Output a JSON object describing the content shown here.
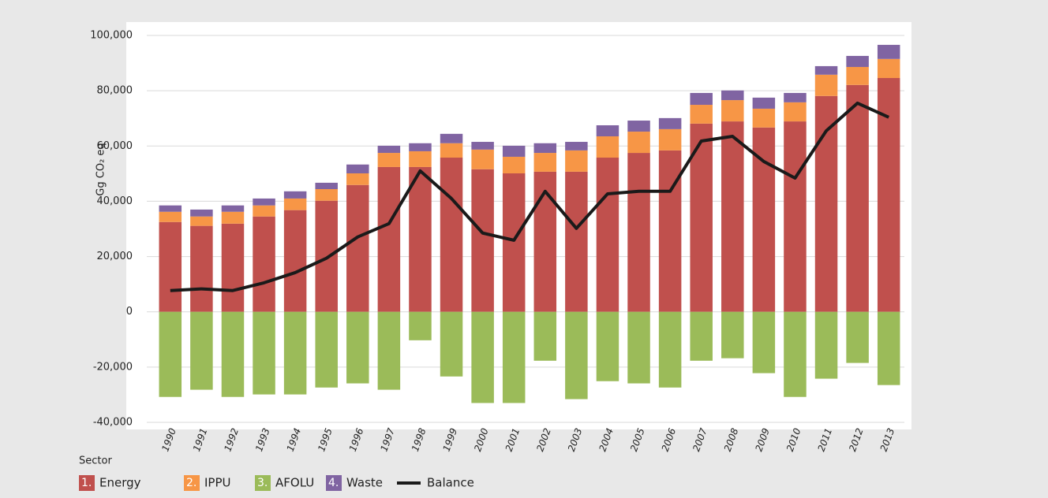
{
  "chart_data": {
    "type": "bar",
    "stacked": true,
    "y_label": "Gg CO₂ eq",
    "legend_title": "Sector",
    "categories": [
      "1990",
      "1991",
      "1992",
      "1993",
      "1994",
      "1995",
      "1996",
      "1997",
      "1998",
      "1999",
      "2000",
      "2001",
      "2002",
      "2003",
      "2004",
      "2005",
      "2006",
      "2007",
      "2008",
      "2009",
      "2010",
      "2011",
      "2012",
      "2013"
    ],
    "series": [
      {
        "code": "1.",
        "name": "Energy",
        "color": "#c0504d",
        "values": [
          32500,
          31100,
          31900,
          34500,
          36800,
          40200,
          45900,
          52400,
          52400,
          55800,
          51600,
          50100,
          50700,
          50700,
          55800,
          57500,
          58400,
          68100,
          68900,
          66700,
          68900,
          78100,
          82100,
          84600
        ]
      },
      {
        "code": "2.",
        "name": "IPPU",
        "color": "#f79646",
        "values": [
          3700,
          3400,
          4300,
          4000,
          4200,
          4200,
          4200,
          5100,
          5700,
          5200,
          7100,
          6000,
          6800,
          7700,
          7700,
          7700,
          7700,
          6800,
          7700,
          6800,
          6900,
          7700,
          6500,
          6900
        ]
      },
      {
        "code": "3.",
        "name": "AFOLU",
        "color": "#9bbb59",
        "values": [
          -30800,
          -28200,
          -30800,
          -29900,
          -29900,
          -27400,
          -25900,
          -28200,
          -10300,
          -23400,
          -33000,
          -33000,
          -17700,
          -31600,
          -25100,
          -25900,
          -27400,
          -17700,
          -16800,
          -22200,
          -30800,
          -24200,
          -18500,
          -26500
        ]
      },
      {
        "code": "4.",
        "name": "Waste",
        "color": "#8064a2",
        "values": [
          2300,
          2500,
          2300,
          2500,
          2600,
          2300,
          3200,
          2600,
          2900,
          3400,
          2800,
          4000,
          3500,
          3100,
          4000,
          4000,
          4000,
          4300,
          3500,
          4000,
          3400,
          3100,
          4000,
          5100
        ]
      },
      {
        "name": "Balance",
        "type": "line",
        "color": "#1a1a1a",
        "values": [
          7700,
          8300,
          7700,
          10500,
          14200,
          19400,
          27100,
          31900,
          51000,
          41000,
          28500,
          25900,
          43600,
          30200,
          42700,
          43600,
          43600,
          61800,
          63500,
          54400,
          48400,
          65500,
          75500,
          70400
        ]
      }
    ],
    "ylim": [
      -40000,
      100000
    ],
    "yticks": [
      {
        "value": -40000,
        "label": "-40,000"
      },
      {
        "value": -20000,
        "label": "-20,000"
      },
      0,
      {
        "value": 20000,
        "label": "20,000"
      },
      {
        "value": 40000,
        "label": "40,000"
      },
      {
        "value": 60000,
        "label": "60,000"
      },
      {
        "value": 80000,
        "label": "80,000"
      },
      {
        "value": 100000,
        "label": "100,000"
      }
    ],
    "grid": true,
    "legend": "bottom-left"
  }
}
